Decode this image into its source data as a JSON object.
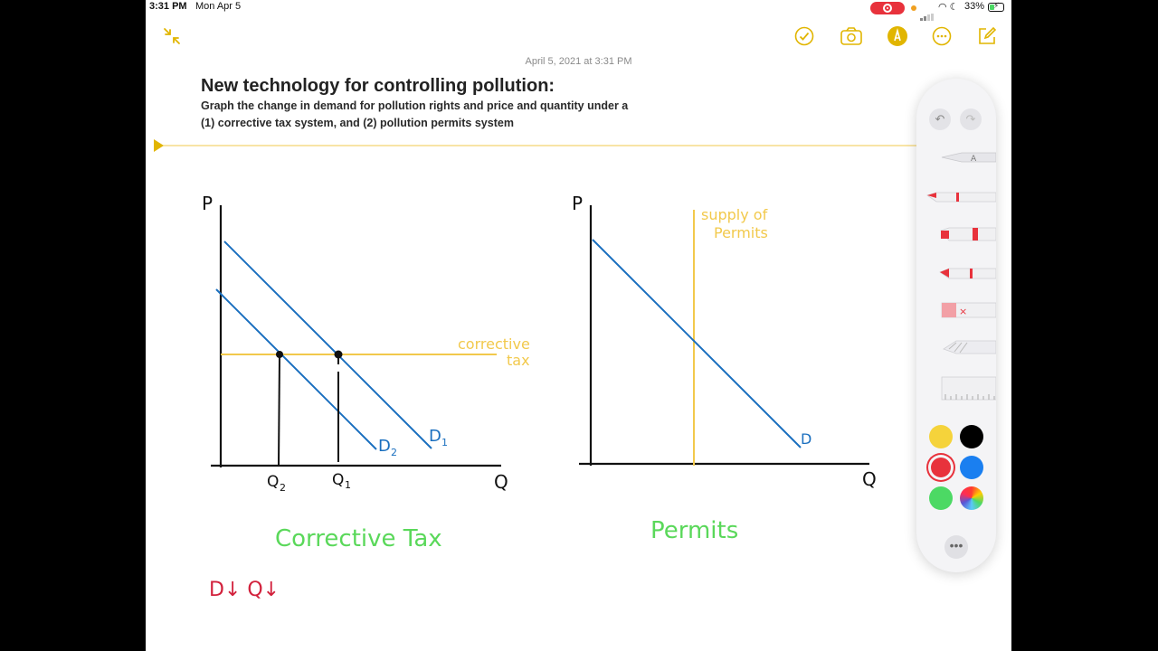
{
  "status_bar": {
    "time": "3:31 PM",
    "date": "Mon Apr 5",
    "battery": "33%",
    "icons": [
      "screen-recording-icon",
      "wifi-icon",
      "moon-icon",
      "battery-icon"
    ]
  },
  "toolbar": {
    "left_icon": "shrink-icon",
    "right_icons": [
      "checklist-icon",
      "camera-icon",
      "markup-icon",
      "more-icon",
      "compose-icon"
    ],
    "accent_color": "#e1b500"
  },
  "note": {
    "date": "April 5, 2021 at 3:31 PM",
    "title": "New technology for controlling pollution:",
    "line1": "Graph the change in demand for pollution rights and price and quantity under a",
    "line2": "(1) corrective tax system, and (2) pollution permits system"
  },
  "graph_left": {
    "y_label": "P",
    "x_label": "Q",
    "d1_label": "D",
    "d1_sub": "1",
    "d2_label": "D",
    "d2_sub": "2",
    "q1_label": "Q",
    "q1_sub": "1",
    "q2_label": "Q",
    "q2_sub": "2",
    "tax_label_1": "corrective",
    "tax_label_2": "tax",
    "caption": "Corrective Tax",
    "note": "D↓ Q↓"
  },
  "graph_right": {
    "y_label": "P",
    "x_label": "Q",
    "d_label": "D",
    "supply_label_1": "supply of",
    "supply_label_2": "Permits",
    "caption": "Permits"
  },
  "palette": {
    "tools": [
      "pen",
      "marker",
      "highlighter",
      "pencil",
      "eraser",
      "lasso",
      "ruler"
    ],
    "colors": [
      "#f5d33b",
      "#000000",
      "#e8323c",
      "#1a7ff0",
      "#4cd964",
      "multicolor"
    ],
    "selected_color": "#e8323c"
  },
  "colors": {
    "blue_line": "#1a6fbf",
    "yellow_line": "#f2c94c",
    "green_text": "#5ad85a",
    "red_text": "#d2213c"
  }
}
